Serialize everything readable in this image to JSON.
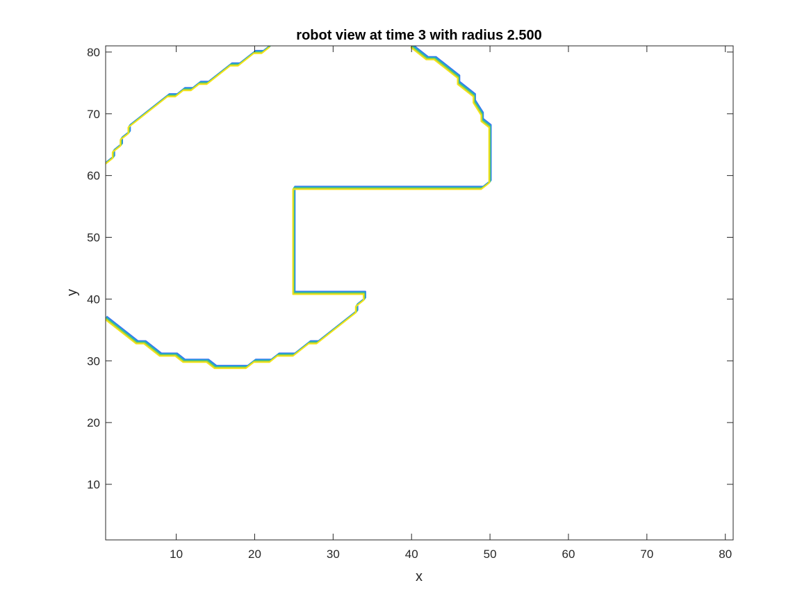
{
  "chart_data": {
    "type": "contour",
    "title": "robot view at time 3 with radius 2.500",
    "xlabel": "x",
    "ylabel": "y",
    "xlim": [
      1,
      81
    ],
    "ylim": [
      1,
      81
    ],
    "xticks": [
      10,
      20,
      30,
      40,
      50,
      60,
      70,
      80
    ],
    "yticks": [
      10,
      20,
      30,
      40,
      50,
      60,
      70,
      80
    ],
    "xtick_labels": [
      "10",
      "20",
      "30",
      "40",
      "50",
      "60",
      "70",
      "80"
    ],
    "ytick_labels": [
      "10",
      "20",
      "30",
      "40",
      "50",
      "60",
      "70",
      "80"
    ],
    "grid": false,
    "colormap": [
      "#3a6ef0",
      "#1fa3d8",
      "#3cc08c",
      "#a8cc3a",
      "#f2e21c"
    ],
    "contours": [
      {
        "name": "upper",
        "points": [
          [
            1,
            62
          ],
          [
            2,
            63
          ],
          [
            2,
            64
          ],
          [
            3,
            65
          ],
          [
            3,
            66
          ],
          [
            4,
            67
          ],
          [
            4,
            68
          ],
          [
            5,
            69
          ],
          [
            8,
            72
          ],
          [
            9,
            73
          ],
          [
            10,
            73
          ],
          [
            11,
            74
          ],
          [
            12,
            74
          ],
          [
            13,
            75
          ],
          [
            14,
            75
          ],
          [
            17,
            78
          ],
          [
            18,
            78
          ],
          [
            20,
            80
          ],
          [
            21,
            80
          ],
          [
            22,
            81
          ]
        ]
      },
      {
        "name": "right-and-notch",
        "points": [
          [
            40,
            81
          ],
          [
            42,
            79
          ],
          [
            43,
            79
          ],
          [
            46,
            76
          ],
          [
            46,
            75
          ],
          [
            48,
            73
          ],
          [
            48,
            72
          ],
          [
            49,
            70
          ],
          [
            49,
            69
          ],
          [
            50,
            68
          ],
          [
            50,
            59
          ],
          [
            49,
            58
          ],
          [
            25,
            58
          ],
          [
            25,
            41
          ],
          [
            34,
            41
          ],
          [
            34,
            40
          ],
          [
            33,
            39
          ],
          [
            33,
            38
          ],
          [
            28,
            33
          ],
          [
            27,
            33
          ],
          [
            25,
            31
          ],
          [
            23,
            31
          ],
          [
            22,
            30
          ],
          [
            20,
            30
          ],
          [
            19,
            29
          ],
          [
            15,
            29
          ],
          [
            14,
            30
          ],
          [
            11,
            30
          ],
          [
            10,
            31
          ],
          [
            8,
            31
          ],
          [
            6,
            33
          ],
          [
            5,
            33
          ],
          [
            1,
            37
          ]
        ]
      }
    ]
  }
}
